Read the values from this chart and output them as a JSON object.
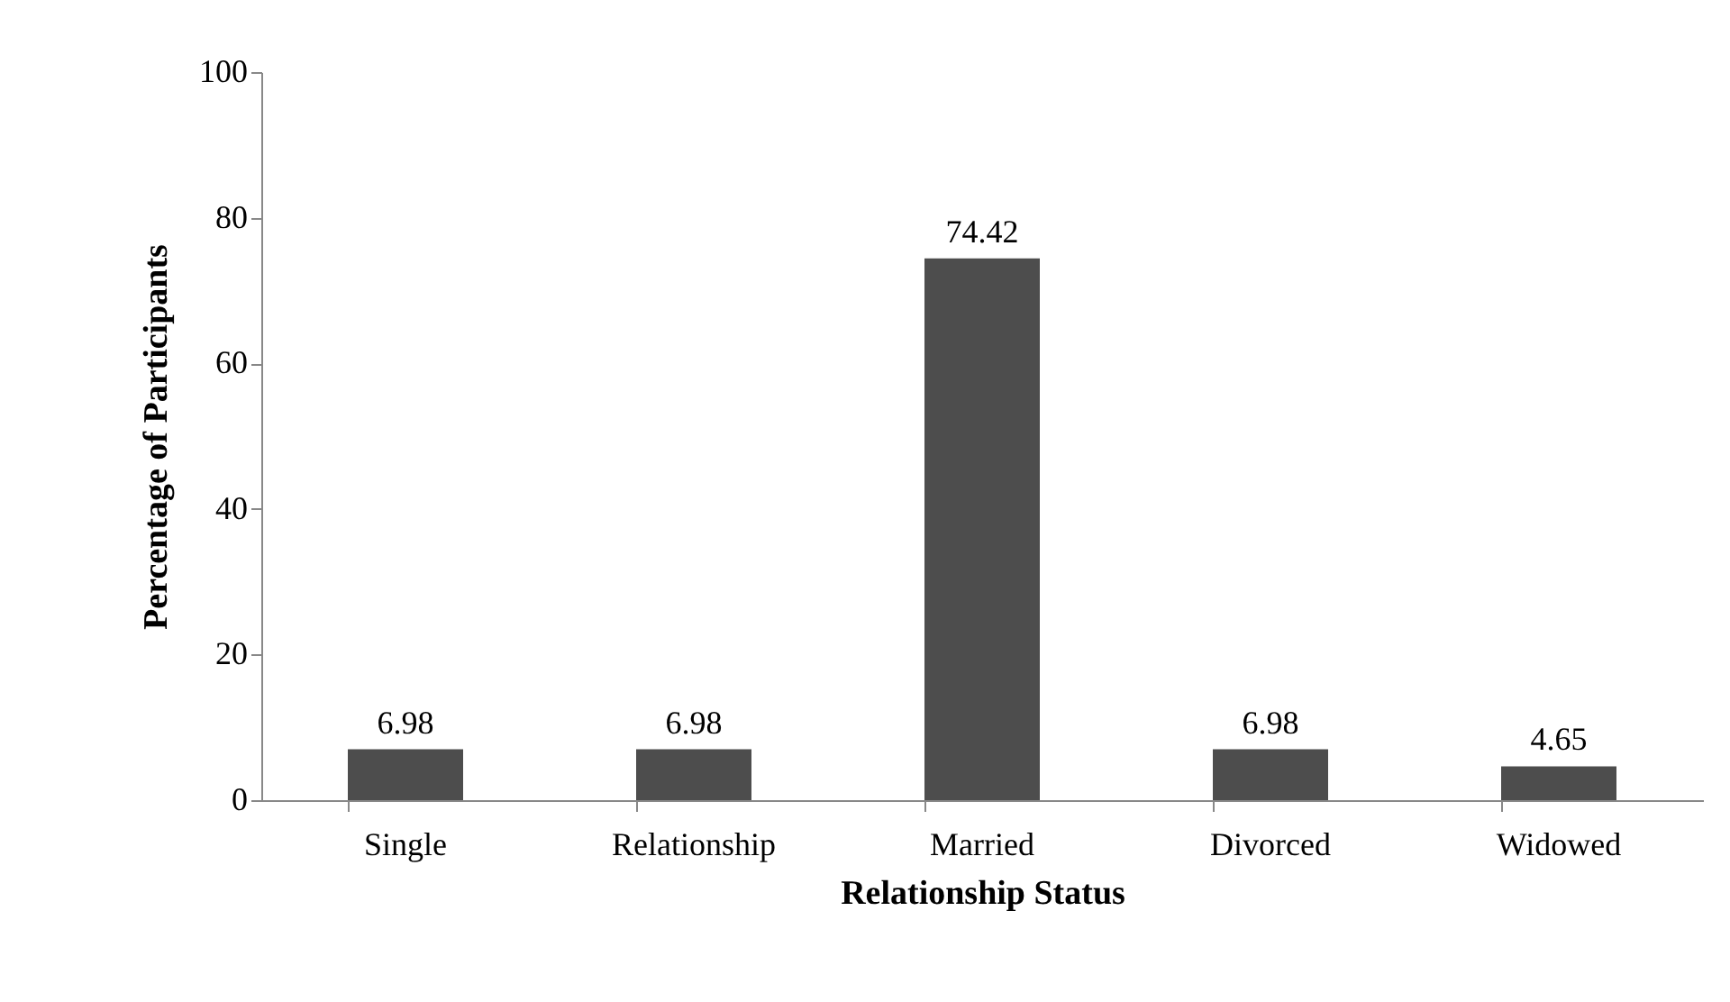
{
  "chart_data": {
    "type": "bar",
    "xlabel": "Relationship Status",
    "ylabel": "Percentage of Participants",
    "categories": [
      "Single",
      "Relationship",
      "Married",
      "Divorced",
      "Widowed"
    ],
    "values": [
      6.98,
      6.98,
      74.42,
      6.98,
      4.65
    ],
    "color": "#4d4d4d",
    "ylim": [
      0,
      100
    ],
    "yticks": [
      0,
      20,
      40,
      60,
      80,
      100
    ],
    "grid": false,
    "data_labels": true
  }
}
